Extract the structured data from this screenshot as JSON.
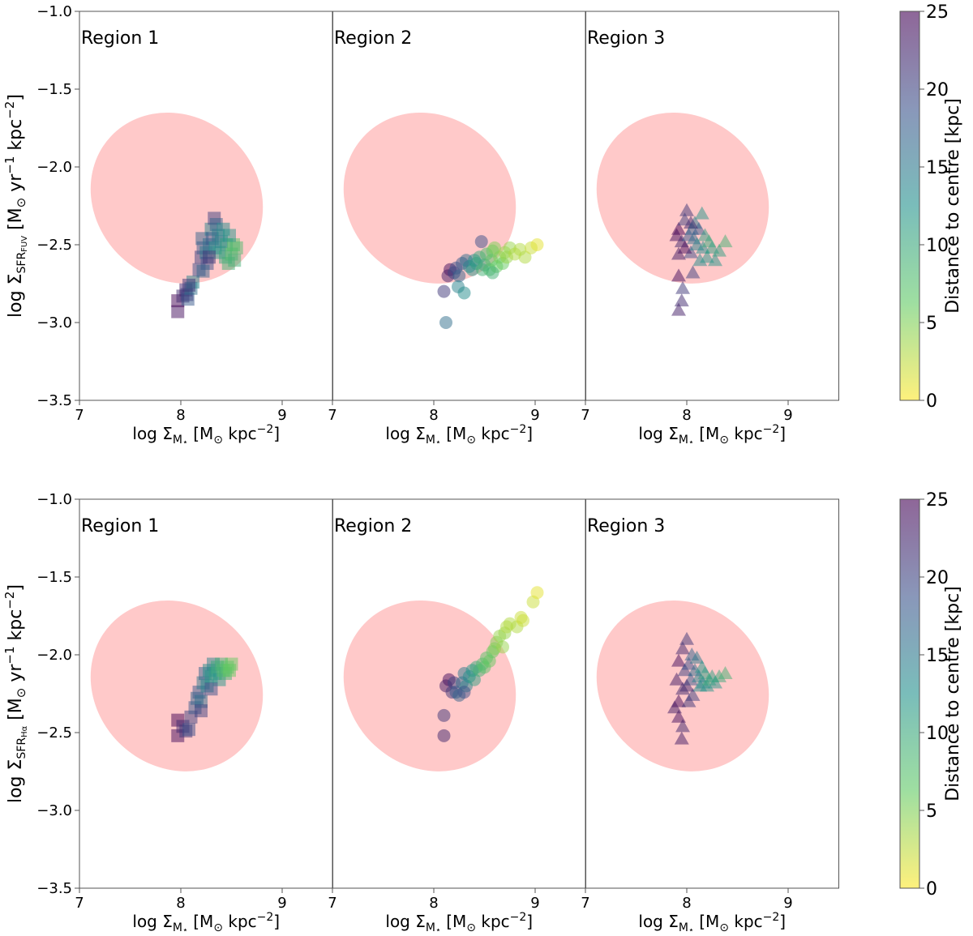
{
  "figure": {
    "x_axis_label": "log Σ",
    "x_axis_sub": "M",
    "x_axis_subsub": "⋆",
    "x_axis_unit_prefix": "[M",
    "x_axis_unit_odot": "⊙",
    "x_axis_unit_suffix": "kpc",
    "x_axis_unit_exp": "−2",
    "x_axis_unit_close": "]",
    "y_label_prefix": "log Σ",
    "y_label_sub_rows": [
      "SFR",
      "SFR"
    ],
    "y_label_subsub_rows": [
      "FUV",
      "Hα"
    ],
    "y_label_unit_prefix": "[M",
    "y_label_unit_odot": "⊙",
    "y_label_unit_yr": "yr",
    "y_label_unit_yr_exp": "−1",
    "y_label_unit_kpc": "kpc",
    "y_label_unit_kpc_exp": "−2",
    "y_label_unit_close": "]",
    "colorbar_label": "Distance to centre [kpc]",
    "colorbar_ticks": [
      "0",
      "5",
      "10",
      "15",
      "20",
      "25"
    ]
  },
  "chart_data": {
    "type": "scatter",
    "rows": [
      "FUV",
      "Hα"
    ],
    "panels": [
      "Region 1",
      "Region 2",
      "Region 3"
    ],
    "markers": [
      "square",
      "circle",
      "triangle"
    ],
    "xlim": [
      7,
      9.5
    ],
    "ylim": [
      -3.5,
      -1.0
    ],
    "xticks": [
      7,
      8,
      9
    ],
    "xtick_labels": [
      "7",
      "8",
      "9"
    ],
    "yticks": [
      -3.5,
      -3.0,
      -2.5,
      -2.0,
      -1.5,
      -1.0
    ],
    "ytick_labels": [
      "−3.5",
      "−3.0",
      "−2.5",
      "−2.0",
      "−1.5",
      "−1.0"
    ],
    "colorbar": {
      "range": [
        0,
        25
      ],
      "colormap": "viridis_r",
      "label": "Distance to centre [kpc]"
    },
    "reference_ellipse": {
      "center": [
        7.96,
        -2.2
      ],
      "axis_x": 0.8,
      "axis_y": 0.58,
      "rotation_deg": 47,
      "color": "#ffc9c9"
    },
    "series": [
      {
        "row": "FUV",
        "region": "Region 1",
        "marker": "square",
        "points": [
          [
            7.97,
            -2.93,
            24
          ],
          [
            7.97,
            -2.86,
            25
          ],
          [
            8.02,
            -2.83,
            22
          ],
          [
            8.05,
            -2.79,
            23
          ],
          [
            8.07,
            -2.85,
            18
          ],
          [
            8.06,
            -2.82,
            20
          ],
          [
            8.1,
            -2.78,
            16
          ],
          [
            8.12,
            -2.74,
            14
          ],
          [
            8.08,
            -2.76,
            21
          ],
          [
            8.18,
            -2.66,
            19
          ],
          [
            8.2,
            -2.58,
            20
          ],
          [
            8.22,
            -2.52,
            18
          ],
          [
            8.21,
            -2.46,
            17
          ],
          [
            8.25,
            -2.55,
            15
          ],
          [
            8.26,
            -2.62,
            19
          ],
          [
            8.28,
            -2.5,
            16
          ],
          [
            8.3,
            -2.4,
            14
          ],
          [
            8.31,
            -2.46,
            18
          ],
          [
            8.33,
            -2.33,
            20
          ],
          [
            8.35,
            -2.37,
            17
          ],
          [
            8.34,
            -2.52,
            13
          ],
          [
            8.37,
            -2.44,
            15
          ],
          [
            8.38,
            -2.55,
            12
          ],
          [
            8.4,
            -2.48,
            14
          ],
          [
            8.42,
            -2.4,
            13
          ],
          [
            8.44,
            -2.58,
            10
          ],
          [
            8.45,
            -2.5,
            11
          ],
          [
            8.47,
            -2.62,
            9
          ],
          [
            8.5,
            -2.56,
            8
          ],
          [
            8.52,
            -2.5,
            7
          ],
          [
            8.53,
            -2.6,
            9
          ],
          [
            8.55,
            -2.52,
            8
          ],
          [
            8.48,
            -2.44,
            12
          ],
          [
            8.28,
            -2.58,
            21
          ],
          [
            8.22,
            -2.67,
            17
          ]
        ]
      },
      {
        "row": "FUV",
        "region": "Region 2",
        "marker": "circle",
        "points": [
          [
            8.12,
            -3.0,
            16
          ],
          [
            8.1,
            -2.8,
            21
          ],
          [
            8.14,
            -2.7,
            23
          ],
          [
            8.16,
            -2.66,
            24
          ],
          [
            8.2,
            -2.68,
            20
          ],
          [
            8.22,
            -2.65,
            19
          ],
          [
            8.25,
            -2.7,
            17
          ],
          [
            8.24,
            -2.77,
            14
          ],
          [
            8.3,
            -2.81,
            13
          ],
          [
            8.28,
            -2.62,
            18
          ],
          [
            8.32,
            -2.6,
            16
          ],
          [
            8.35,
            -2.64,
            14
          ],
          [
            8.38,
            -2.66,
            12
          ],
          [
            8.4,
            -2.6,
            13
          ],
          [
            8.42,
            -2.62,
            11
          ],
          [
            8.45,
            -2.58,
            10
          ],
          [
            8.47,
            -2.48,
            19
          ],
          [
            8.48,
            -2.66,
            9
          ],
          [
            8.5,
            -2.63,
            10
          ],
          [
            8.52,
            -2.56,
            8
          ],
          [
            8.55,
            -2.66,
            8
          ],
          [
            8.57,
            -2.6,
            7
          ],
          [
            8.58,
            -2.54,
            6
          ],
          [
            8.6,
            -2.52,
            5
          ],
          [
            8.62,
            -2.64,
            6
          ],
          [
            8.65,
            -2.58,
            5
          ],
          [
            8.68,
            -2.62,
            6
          ],
          [
            8.7,
            -2.55,
            4
          ],
          [
            8.72,
            -2.58,
            4
          ],
          [
            8.75,
            -2.52,
            4
          ],
          [
            8.8,
            -2.56,
            3
          ],
          [
            8.85,
            -2.53,
            3
          ],
          [
            8.9,
            -2.58,
            3
          ],
          [
            8.96,
            -2.52,
            2
          ],
          [
            9.02,
            -2.5,
            1
          ],
          [
            8.58,
            -2.68,
            9
          ]
        ]
      },
      {
        "row": "FUV",
        "region": "Region 3",
        "marker": "triangle",
        "points": [
          [
            7.92,
            -2.92,
            23
          ],
          [
            7.95,
            -2.86,
            22
          ],
          [
            7.92,
            -2.7,
            24
          ],
          [
            7.96,
            -2.78,
            21
          ],
          [
            7.92,
            -2.56,
            23
          ],
          [
            7.9,
            -2.44,
            24
          ],
          [
            7.92,
            -2.4,
            25
          ],
          [
            7.95,
            -2.48,
            22
          ],
          [
            7.98,
            -2.34,
            20
          ],
          [
            8.0,
            -2.28,
            21
          ],
          [
            8.02,
            -2.44,
            18
          ],
          [
            8.04,
            -2.55,
            19
          ],
          [
            8.05,
            -2.4,
            17
          ],
          [
            8.06,
            -2.68,
            20
          ],
          [
            8.07,
            -2.46,
            16
          ],
          [
            8.08,
            -2.36,
            15
          ],
          [
            8.1,
            -2.5,
            14
          ],
          [
            8.12,
            -2.4,
            18
          ],
          [
            8.13,
            -2.6,
            13
          ],
          [
            8.15,
            -2.3,
            12
          ],
          [
            8.16,
            -2.52,
            13
          ],
          [
            8.18,
            -2.44,
            11
          ],
          [
            8.2,
            -2.58,
            12
          ],
          [
            8.22,
            -2.48,
            10
          ],
          [
            8.25,
            -2.52,
            11
          ],
          [
            8.28,
            -2.6,
            12
          ],
          [
            8.32,
            -2.54,
            11
          ],
          [
            8.38,
            -2.48,
            9
          ],
          [
            8.04,
            -2.36,
            22
          ],
          [
            7.98,
            -2.52,
            24
          ]
        ]
      },
      {
        "row": "Hα",
        "region": "Region 1",
        "marker": "square",
        "points": [
          [
            7.97,
            -2.52,
            24
          ],
          [
            7.97,
            -2.42,
            25
          ],
          [
            8.02,
            -2.46,
            22
          ],
          [
            8.05,
            -2.49,
            21
          ],
          [
            8.08,
            -2.48,
            19
          ],
          [
            8.1,
            -2.4,
            20
          ],
          [
            8.14,
            -2.34,
            18
          ],
          [
            8.16,
            -2.28,
            17
          ],
          [
            8.18,
            -2.24,
            18
          ],
          [
            8.2,
            -2.3,
            16
          ],
          [
            8.22,
            -2.18,
            15
          ],
          [
            8.24,
            -2.12,
            17
          ],
          [
            8.26,
            -2.2,
            14
          ],
          [
            8.28,
            -2.1,
            13
          ],
          [
            8.3,
            -2.14,
            12
          ],
          [
            8.32,
            -2.06,
            14
          ],
          [
            8.34,
            -2.12,
            11
          ],
          [
            8.36,
            -2.08,
            10
          ],
          [
            8.38,
            -2.16,
            12
          ],
          [
            8.4,
            -2.06,
            9
          ],
          [
            8.42,
            -2.1,
            8
          ],
          [
            8.44,
            -2.12,
            9
          ],
          [
            8.46,
            -2.08,
            7
          ],
          [
            8.48,
            -2.1,
            6
          ],
          [
            8.5,
            -2.06,
            6
          ],
          [
            8.3,
            -2.22,
            19
          ],
          [
            8.2,
            -2.36,
            20
          ]
        ]
      },
      {
        "row": "Hα",
        "region": "Region 2",
        "marker": "circle",
        "points": [
          [
            8.1,
            -2.52,
            22
          ],
          [
            8.1,
            -2.39,
            21
          ],
          [
            8.12,
            -2.2,
            23
          ],
          [
            8.15,
            -2.16,
            24
          ],
          [
            8.18,
            -2.24,
            21
          ],
          [
            8.2,
            -2.18,
            20
          ],
          [
            8.22,
            -2.24,
            18
          ],
          [
            8.25,
            -2.26,
            17
          ],
          [
            8.28,
            -2.18,
            16
          ],
          [
            8.3,
            -2.12,
            15
          ],
          [
            8.32,
            -2.2,
            14
          ],
          [
            8.35,
            -2.14,
            13
          ],
          [
            8.38,
            -2.1,
            12
          ],
          [
            8.4,
            -2.16,
            11
          ],
          [
            8.42,
            -2.08,
            10
          ],
          [
            8.45,
            -2.1,
            9
          ],
          [
            8.48,
            -2.06,
            8
          ],
          [
            8.5,
            -2.08,
            7
          ],
          [
            8.52,
            -2.02,
            7
          ],
          [
            8.55,
            -2.04,
            6
          ],
          [
            8.58,
            -1.98,
            6
          ],
          [
            8.6,
            -1.96,
            5
          ],
          [
            8.62,
            -1.92,
            5
          ],
          [
            8.65,
            -1.88,
            4
          ],
          [
            8.68,
            -1.95,
            4
          ],
          [
            8.7,
            -1.86,
            4
          ],
          [
            8.72,
            -1.82,
            3
          ],
          [
            8.75,
            -1.8,
            3
          ],
          [
            8.82,
            -1.82,
            3
          ],
          [
            8.86,
            -1.76,
            2
          ],
          [
            8.88,
            -1.78,
            2
          ],
          [
            8.98,
            -1.66,
            2
          ],
          [
            9.02,
            -1.6,
            1
          ],
          [
            8.3,
            -2.24,
            19
          ]
        ]
      },
      {
        "row": "Hα",
        "region": "Region 3",
        "marker": "triangle",
        "points": [
          [
            7.95,
            -2.54,
            23
          ],
          [
            7.96,
            -2.46,
            22
          ],
          [
            7.92,
            -2.4,
            24
          ],
          [
            7.88,
            -2.34,
            23
          ],
          [
            7.92,
            -2.3,
            24
          ],
          [
            7.96,
            -2.22,
            22
          ],
          [
            7.9,
            -2.16,
            23
          ],
          [
            7.92,
            -2.04,
            24
          ],
          [
            7.96,
            -1.96,
            22
          ],
          [
            8.0,
            -1.9,
            21
          ],
          [
            7.98,
            -2.1,
            20
          ],
          [
            8.02,
            -2.06,
            19
          ],
          [
            8.04,
            -2.16,
            18
          ],
          [
            8.05,
            -2.0,
            17
          ],
          [
            8.06,
            -2.26,
            20
          ],
          [
            8.08,
            -2.1,
            16
          ],
          [
            8.1,
            -2.02,
            15
          ],
          [
            8.12,
            -2.14,
            14
          ],
          [
            8.13,
            -2.2,
            13
          ],
          [
            8.15,
            -2.08,
            12
          ],
          [
            8.16,
            -2.18,
            13
          ],
          [
            8.18,
            -2.12,
            11
          ],
          [
            8.2,
            -2.2,
            12
          ],
          [
            8.22,
            -2.16,
            10
          ],
          [
            8.25,
            -2.14,
            11
          ],
          [
            8.28,
            -2.18,
            12
          ],
          [
            8.32,
            -2.14,
            10
          ],
          [
            8.38,
            -2.12,
            9
          ],
          [
            8.02,
            -2.3,
            21
          ],
          [
            8.0,
            -2.2,
            22
          ]
        ]
      }
    ]
  }
}
